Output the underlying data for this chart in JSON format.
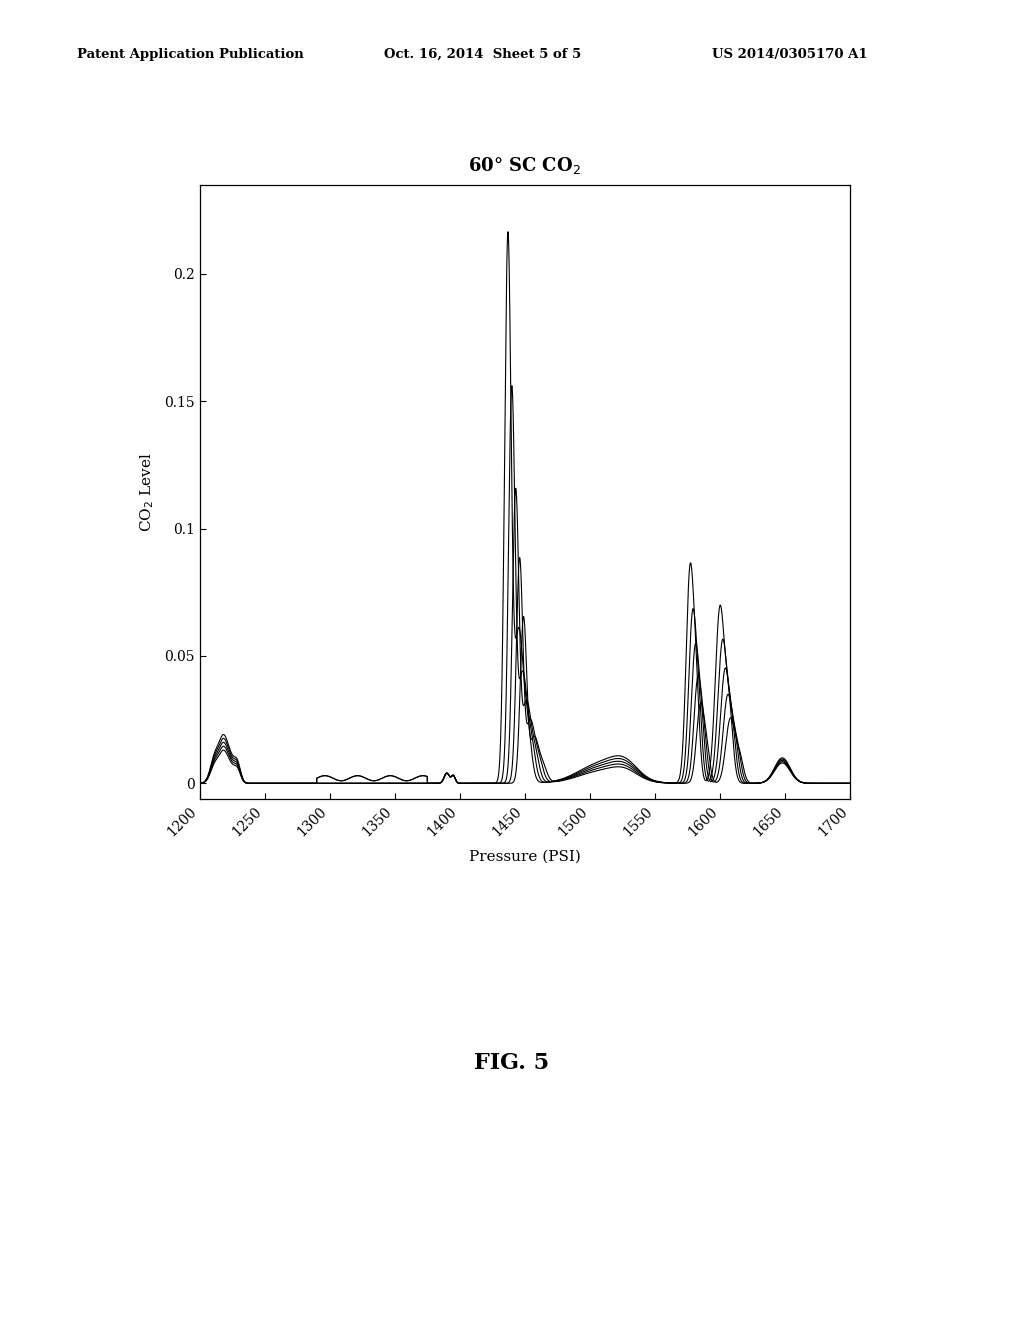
{
  "xlabel": "Pressure (PSI)",
  "ylabel": "CO$_2$ Level",
  "title": "60° SC CO$_2$",
  "xlim": [
    1200,
    1700
  ],
  "ylim": [
    -0.006,
    0.235
  ],
  "yticks": [
    0,
    0.05,
    0.1,
    0.15,
    0.2
  ],
  "xticks": [
    1200,
    1250,
    1300,
    1350,
    1400,
    1450,
    1500,
    1550,
    1600,
    1650,
    1700
  ],
  "background_color": "#ffffff",
  "line_color": "#000000",
  "header_left": "Patent Application Publication",
  "header_center": "Oct. 16, 2014  Sheet 5 of 5",
  "header_right": "US 2014/0305170 A1",
  "fig_label": "FIG. 5",
  "curve_peak1_amps": [
    0.215,
    0.155,
    0.115,
    0.088,
    0.065
  ],
  "curve_peak1_centers": [
    1437,
    1440,
    1443,
    1446,
    1449
  ],
  "curve_peak2_amps": [
    0.082,
    0.065,
    0.052,
    0.04,
    0.03
  ],
  "curve_peak2_centers": [
    1577,
    1579,
    1581,
    1583,
    1585
  ],
  "curve_peak3_amps": [
    0.068,
    0.055,
    0.044,
    0.034,
    0.025
  ],
  "curve_peak3_centers": [
    1600,
    1602,
    1604,
    1606,
    1608
  ]
}
